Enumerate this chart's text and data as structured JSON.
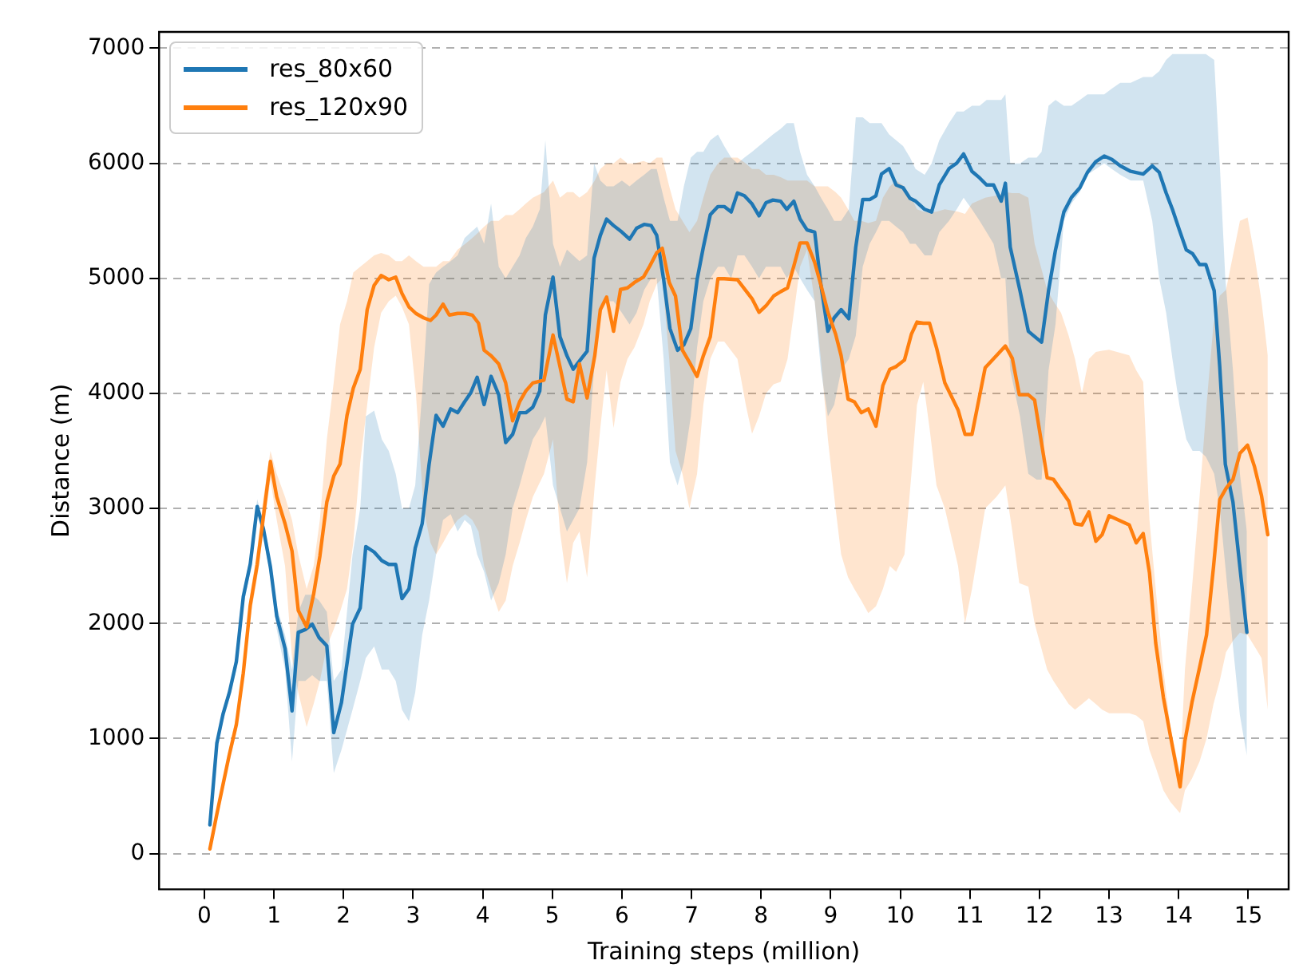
{
  "chart_data": {
    "type": "line",
    "xlabel": "Training steps (million)",
    "ylabel": "Distance (m)",
    "xlim": [
      -0.65,
      15.58
    ],
    "xticks": [
      0,
      1,
      2,
      3,
      4,
      5,
      6,
      7,
      8,
      9,
      10,
      11,
      12,
      13,
      14,
      15
    ],
    "ylim": [
      -311,
      7142
    ],
    "yticks": [
      0,
      1000,
      2000,
      3000,
      4000,
      5000,
      6000,
      7000
    ],
    "grid": "y",
    "legend": "top left",
    "marker": "none",
    "line_style": "solid",
    "series": [
      {
        "name": "res_80x60",
        "color": "#1f77b4",
        "x": [
          0.08,
          0.18,
          0.27,
          0.36,
          0.46,
          0.56,
          0.66,
          0.76,
          0.85,
          0.95,
          1.04,
          1.16,
          1.26,
          1.35,
          1.45,
          1.55,
          1.65,
          1.76,
          1.86,
          1.97,
          2.13,
          2.24,
          2.32,
          2.44,
          2.55,
          2.65,
          2.75,
          2.84,
          2.94,
          3.03,
          3.13,
          3.23,
          3.33,
          3.43,
          3.54,
          3.64,
          3.74,
          3.83,
          3.92,
          4.02,
          4.12,
          4.23,
          4.33,
          4.43,
          4.53,
          4.62,
          4.72,
          4.82,
          4.9,
          5.01,
          5.11,
          5.21,
          5.3,
          5.39,
          5.5,
          5.6,
          5.69,
          5.78,
          5.88,
          6.0,
          6.11,
          6.21,
          6.32,
          6.42,
          6.5,
          6.6,
          6.69,
          6.8,
          6.89,
          6.99,
          7.08,
          7.17,
          7.27,
          7.38,
          7.47,
          7.57,
          7.66,
          7.76,
          7.87,
          7.97,
          8.07,
          8.17,
          8.28,
          8.37,
          8.47,
          8.56,
          8.66,
          8.77,
          8.86,
          8.96,
          9.05,
          9.15,
          9.26,
          9.36,
          9.46,
          9.56,
          9.65,
          9.73,
          9.84,
          9.94,
          10.04,
          10.14,
          10.22,
          10.35,
          10.45,
          10.56,
          10.7,
          10.81,
          10.91,
          11.03,
          11.14,
          11.24,
          11.34,
          11.45,
          11.51,
          11.58,
          11.72,
          11.84,
          11.96,
          12.03,
          12.13,
          12.23,
          12.35,
          12.46,
          12.58,
          12.69,
          12.81,
          12.93,
          13.04,
          13.16,
          13.31,
          13.49,
          13.62,
          13.72,
          13.82,
          13.91,
          14.01,
          14.11,
          14.2,
          14.3,
          14.39,
          14.51,
          14.59,
          14.67,
          14.78,
          14.88,
          14.98
        ],
        "values": [
          250,
          960,
          1216,
          1400,
          1669,
          2234,
          2517,
          3017,
          2819,
          2489,
          2065,
          1782,
          1240,
          1923,
          1947,
          1994,
          1876,
          1806,
          1051,
          1311,
          1994,
          2135,
          2668,
          2621,
          2546,
          2513,
          2513,
          2216,
          2301,
          2654,
          2867,
          3385,
          3809,
          3715,
          3865,
          3832,
          3927,
          4007,
          4140,
          3903,
          4148,
          3988,
          3573,
          3644,
          3832,
          3832,
          3880,
          4021,
          4681,
          5011,
          4493,
          4328,
          4210,
          4281,
          4366,
          5176,
          5374,
          5515,
          5459,
          5402,
          5341,
          5435,
          5469,
          5459,
          5374,
          4988,
          4564,
          4375,
          4422,
          4564,
          4988,
          5271,
          5553,
          5624,
          5624,
          5577,
          5742,
          5718,
          5647,
          5544,
          5657,
          5681,
          5671,
          5600,
          5671,
          5515,
          5421,
          5402,
          4940,
          4540,
          4657,
          4728,
          4649,
          5271,
          5685,
          5685,
          5718,
          5907,
          5954,
          5812,
          5788,
          5695,
          5671,
          5600,
          5577,
          5812,
          5954,
          6001,
          6081,
          5930,
          5873,
          5812,
          5812,
          5671,
          5827,
          5271,
          4893,
          4540,
          4479,
          4446,
          4893,
          5247,
          5577,
          5704,
          5788,
          5922,
          6015,
          6063,
          6034,
          5978,
          5930,
          5907,
          5978,
          5922,
          5742,
          5600,
          5421,
          5247,
          5214,
          5120,
          5120,
          4893,
          4233,
          3385,
          3055,
          2489,
          1923
        ],
        "lower": [
          200,
          900,
          1150,
          1350,
          1600,
          2150,
          2450,
          2950,
          2750,
          2400,
          1950,
          1600,
          800,
          1500,
          1500,
          1550,
          1500,
          1500,
          700,
          900,
          1250,
          1500,
          1700,
          1800,
          1600,
          1600,
          1500,
          1250,
          1150,
          1400,
          1900,
          2200,
          2600,
          2900,
          2950,
          2800,
          2900,
          2850,
          2600,
          2450,
          2200,
          2350,
          2600,
          3000,
          3200,
          3400,
          3600,
          3700,
          3800,
          3200,
          3000,
          2800,
          2900,
          3000,
          3400,
          4200,
          4700,
          4800,
          4800,
          4700,
          4600,
          4700,
          4900,
          5000,
          5000,
          4300,
          3400,
          3200,
          3400,
          3800,
          4400,
          4800,
          5000,
          5100,
          5100,
          5000,
          5200,
          5200,
          5100,
          5000,
          5100,
          5100,
          5100,
          5000,
          5100,
          5000,
          4900,
          4800,
          4200,
          3800,
          3900,
          4200,
          4300,
          4500,
          5100,
          5300,
          5400,
          5500,
          5500,
          5450,
          5400,
          5300,
          5300,
          5200,
          5200,
          5400,
          5500,
          5600,
          5700,
          5600,
          5500,
          5400,
          5300,
          5000,
          5000,
          4200,
          3800,
          3300,
          3250,
          3250,
          4200,
          4600,
          5500,
          5650,
          5750,
          5900,
          5950,
          6000,
          5950,
          5900,
          5850,
          5850,
          5500,
          5000,
          4700,
          4300,
          3900,
          3600,
          3500,
          3500,
          3450,
          3300,
          3000,
          2500,
          1800,
          1200,
          850
        ],
        "upper": [
          300,
          1000,
          1260,
          1450,
          1720,
          2300,
          2580,
          3080,
          2880,
          2550,
          2150,
          1900,
          1600,
          2100,
          2250,
          2250,
          2200,
          2100,
          1500,
          1600,
          2600,
          3000,
          3800,
          3850,
          3600,
          3500,
          3300,
          3000,
          3000,
          3200,
          4000,
          4950,
          5050,
          5100,
          5150,
          5200,
          5350,
          5400,
          5450,
          5300,
          5650,
          5100,
          5000,
          5100,
          5200,
          5350,
          5450,
          5600,
          6200,
          5300,
          5100,
          5250,
          5200,
          5150,
          5200,
          6000,
          5850,
          5800,
          5800,
          5850,
          5800,
          5850,
          5900,
          5950,
          5950,
          5700,
          5500,
          5500,
          5800,
          6050,
          6100,
          6100,
          6200,
          6250,
          6150,
          6050,
          6000,
          6050,
          6100,
          6150,
          6200,
          6250,
          6300,
          6350,
          6350,
          6100,
          5900,
          5800,
          5700,
          5600,
          5500,
          5500,
          5600,
          6400,
          6400,
          6350,
          6350,
          6350,
          6250,
          6200,
          6150,
          6050,
          5950,
          5900,
          6000,
          6200,
          6350,
          6450,
          6450,
          6500,
          6500,
          6550,
          6550,
          6550,
          6600,
          6000,
          6000,
          6050,
          6050,
          6100,
          6500,
          6550,
          6500,
          6500,
          6550,
          6600,
          6600,
          6600,
          6650,
          6700,
          6700,
          6750,
          6750,
          6800,
          6900,
          6950,
          6950,
          6950,
          6950,
          6950,
          6950,
          6900,
          6000,
          5000,
          4200,
          3300,
          2800
        ]
      },
      {
        "name": "res_120x90",
        "color": "#ff7f0e",
        "x": [
          0.08,
          0.18,
          0.27,
          0.36,
          0.46,
          0.56,
          0.66,
          0.76,
          0.85,
          0.95,
          1.04,
          1.16,
          1.26,
          1.35,
          1.47,
          1.57,
          1.66,
          1.76,
          1.86,
          1.95,
          2.05,
          2.14,
          2.24,
          2.34,
          2.44,
          2.54,
          2.65,
          2.75,
          2.84,
          2.94,
          3.04,
          3.15,
          3.25,
          3.33,
          3.43,
          3.52,
          3.64,
          3.75,
          3.85,
          3.94,
          4.02,
          4.12,
          4.23,
          4.33,
          4.43,
          4.53,
          4.62,
          4.72,
          4.88,
          5.01,
          5.11,
          5.21,
          5.3,
          5.39,
          5.5,
          5.61,
          5.69,
          5.78,
          5.88,
          5.98,
          6.08,
          6.18,
          6.31,
          6.4,
          6.5,
          6.58,
          6.68,
          6.77,
          6.87,
          6.97,
          7.08,
          7.17,
          7.27,
          7.38,
          7.47,
          7.66,
          7.78,
          7.87,
          7.97,
          8.07,
          8.18,
          8.28,
          8.38,
          8.47,
          8.56,
          8.66,
          8.77,
          8.86,
          8.96,
          9.07,
          9.15,
          9.25,
          9.34,
          9.44,
          9.54,
          9.65,
          9.75,
          9.85,
          9.94,
          10.06,
          10.16,
          10.24,
          10.33,
          10.42,
          10.52,
          10.64,
          10.83,
          10.93,
          11.03,
          11.22,
          11.38,
          11.51,
          11.61,
          11.71,
          11.84,
          11.93,
          12.11,
          12.2,
          12.31,
          12.42,
          12.51,
          12.61,
          12.71,
          12.81,
          12.9,
          13.0,
          13.29,
          13.39,
          13.49,
          13.58,
          13.67,
          13.78,
          13.88,
          14.02,
          14.09,
          14.19,
          14.3,
          14.4,
          14.5,
          14.59,
          14.68,
          14.78,
          14.88,
          14.99,
          15.09,
          15.19,
          15.28
        ],
        "values": [
          40,
          344,
          604,
          863,
          1121,
          1570,
          2159,
          2513,
          2937,
          3408,
          3102,
          2867,
          2630,
          2112,
          1970,
          2253,
          2584,
          3055,
          3281,
          3385,
          3809,
          4045,
          4210,
          4728,
          4940,
          5025,
          4988,
          5011,
          4869,
          4752,
          4695,
          4657,
          4634,
          4681,
          4776,
          4681,
          4695,
          4695,
          4681,
          4610,
          4375,
          4328,
          4257,
          4091,
          3762,
          3927,
          4021,
          4091,
          4115,
          4507,
          4233,
          3950,
          3927,
          4257,
          3960,
          4328,
          4728,
          4837,
          4540,
          4903,
          4917,
          4964,
          5011,
          5106,
          5223,
          5261,
          4964,
          4846,
          4375,
          4271,
          4148,
          4328,
          4493,
          4997,
          4997,
          4988,
          4893,
          4823,
          4705,
          4761,
          4846,
          4884,
          4917,
          5106,
          5308,
          5308,
          5138,
          4940,
          4705,
          4516,
          4328,
          3950,
          3927,
          3832,
          3865,
          3715,
          4069,
          4210,
          4233,
          4290,
          4516,
          4620,
          4610,
          4610,
          4398,
          4091,
          3856,
          3644,
          3644,
          4224,
          4328,
          4412,
          4304,
          3988,
          3988,
          3941,
          3267,
          3253,
          3158,
          3064,
          2867,
          2857,
          2970,
          2715,
          2772,
          2937,
          2857,
          2701,
          2782,
          2442,
          1829,
          1358,
          1028,
          580,
          980,
          1311,
          1617,
          1900,
          2489,
          3078,
          3173,
          3253,
          3479,
          3550,
          3362,
          3111,
          2772
        ],
        "lower": [
          20,
          300,
          550,
          800,
          1050,
          1500,
          2050,
          2400,
          2800,
          3250,
          2900,
          2500,
          1700,
          1400,
          1100,
          1300,
          1500,
          1800,
          1950,
          2100,
          2300,
          2700,
          3400,
          3900,
          4400,
          4700,
          4800,
          4850,
          4750,
          4600,
          4000,
          3000,
          2700,
          2600,
          2700,
          2800,
          2900,
          2950,
          2900,
          2800,
          2500,
          2300,
          2100,
          2200,
          2500,
          2700,
          2900,
          3100,
          3300,
          3600,
          2800,
          2350,
          2700,
          2800,
          2400,
          3200,
          3700,
          4200,
          3700,
          4100,
          4300,
          4400,
          4600,
          4800,
          4950,
          5000,
          4300,
          3500,
          3300,
          3000,
          3300,
          3900,
          4300,
          4450,
          4450,
          4300,
          3900,
          3650,
          3800,
          4000,
          4080,
          4100,
          4300,
          4700,
          5100,
          5250,
          4800,
          4300,
          3600,
          3000,
          2600,
          2400,
          2300,
          2200,
          2090,
          2150,
          2300,
          2500,
          2450,
          2600,
          3300,
          3900,
          4100,
          3700,
          3200,
          3000,
          2500,
          2000,
          2300,
          3000,
          3100,
          3200,
          2800,
          2350,
          2320,
          2000,
          1600,
          1500,
          1400,
          1300,
          1250,
          1300,
          1350,
          1300,
          1250,
          1220,
          1220,
          1200,
          1150,
          900,
          750,
          550,
          450,
          350,
          550,
          650,
          800,
          1000,
          1300,
          1500,
          1750,
          1850,
          1920,
          1900,
          1800,
          1700,
          1250
        ],
        "upper": [
          80,
          400,
          650,
          920,
          1200,
          1650,
          2250,
          2650,
          3100,
          3500,
          3300,
          3100,
          2900,
          2600,
          2300,
          2500,
          2900,
          3600,
          4100,
          4600,
          4800,
          5050,
          5100,
          5150,
          5200,
          5220,
          5200,
          5150,
          5150,
          5200,
          5150,
          5100,
          5100,
          5100,
          5150,
          5150,
          5250,
          5300,
          5350,
          5400,
          5450,
          5500,
          5500,
          5550,
          5550,
          5600,
          5650,
          5700,
          5750,
          5850,
          5700,
          5750,
          5750,
          5700,
          5750,
          5850,
          5950,
          6000,
          6000,
          6050,
          6000,
          6000,
          6020,
          6000,
          6050,
          6050,
          5800,
          5600,
          5500,
          5400,
          5500,
          5700,
          5900,
          6000,
          6050,
          6050,
          6000,
          5950,
          5950,
          5900,
          5900,
          5880,
          5850,
          5850,
          5850,
          5850,
          5800,
          5800,
          5800,
          5750,
          5700,
          5600,
          5500,
          5500,
          5480,
          5500,
          5700,
          5800,
          5850,
          5800,
          5700,
          5600,
          5580,
          5570,
          5580,
          5600,
          5580,
          5560,
          5650,
          5700,
          5720,
          5750,
          5740,
          5740,
          5700,
          5300,
          4900,
          4800,
          4700,
          4500,
          4300,
          4000,
          4300,
          4360,
          4370,
          4380,
          4330,
          4200,
          4100,
          2900,
          2300,
          1600,
          1100,
          700,
          1600,
          2300,
          3100,
          3900,
          4600,
          4850,
          4900,
          5200,
          5500,
          5530,
          5200,
          4800,
          4330
        ]
      }
    ]
  }
}
